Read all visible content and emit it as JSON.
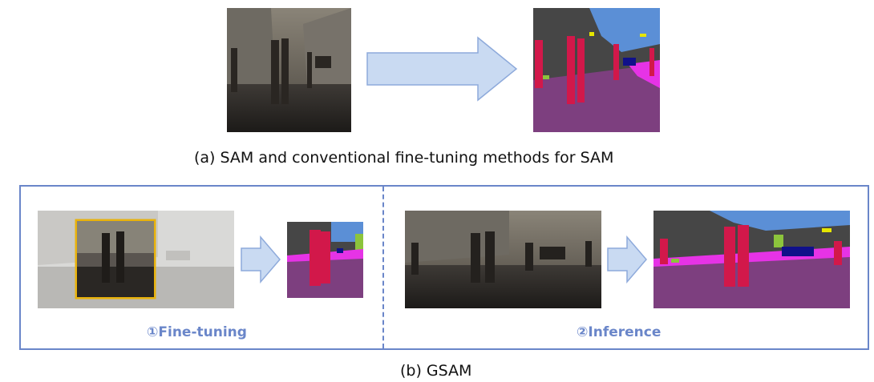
{
  "captions": {
    "a": "(a) SAM and conventional fine-tuning methods for SAM",
    "b": "(b) GSAM"
  },
  "steps": {
    "fine_tuning": "①Fine-tuning",
    "inference": "②Inference"
  },
  "colors": {
    "frame": "#6a86c9",
    "arrow_fill": "#c9daf2",
    "arrow_stroke": "#8eaadb",
    "crop_box": "#e8b20c",
    "road": "#7d3f7f",
    "person": "#d2184a",
    "sky": "#5b8fd6",
    "building": "#464646",
    "sidewalk": "#e633e6",
    "car": "#10108a",
    "vegetation": "#8cc43c",
    "sign": "#e6e600"
  }
}
